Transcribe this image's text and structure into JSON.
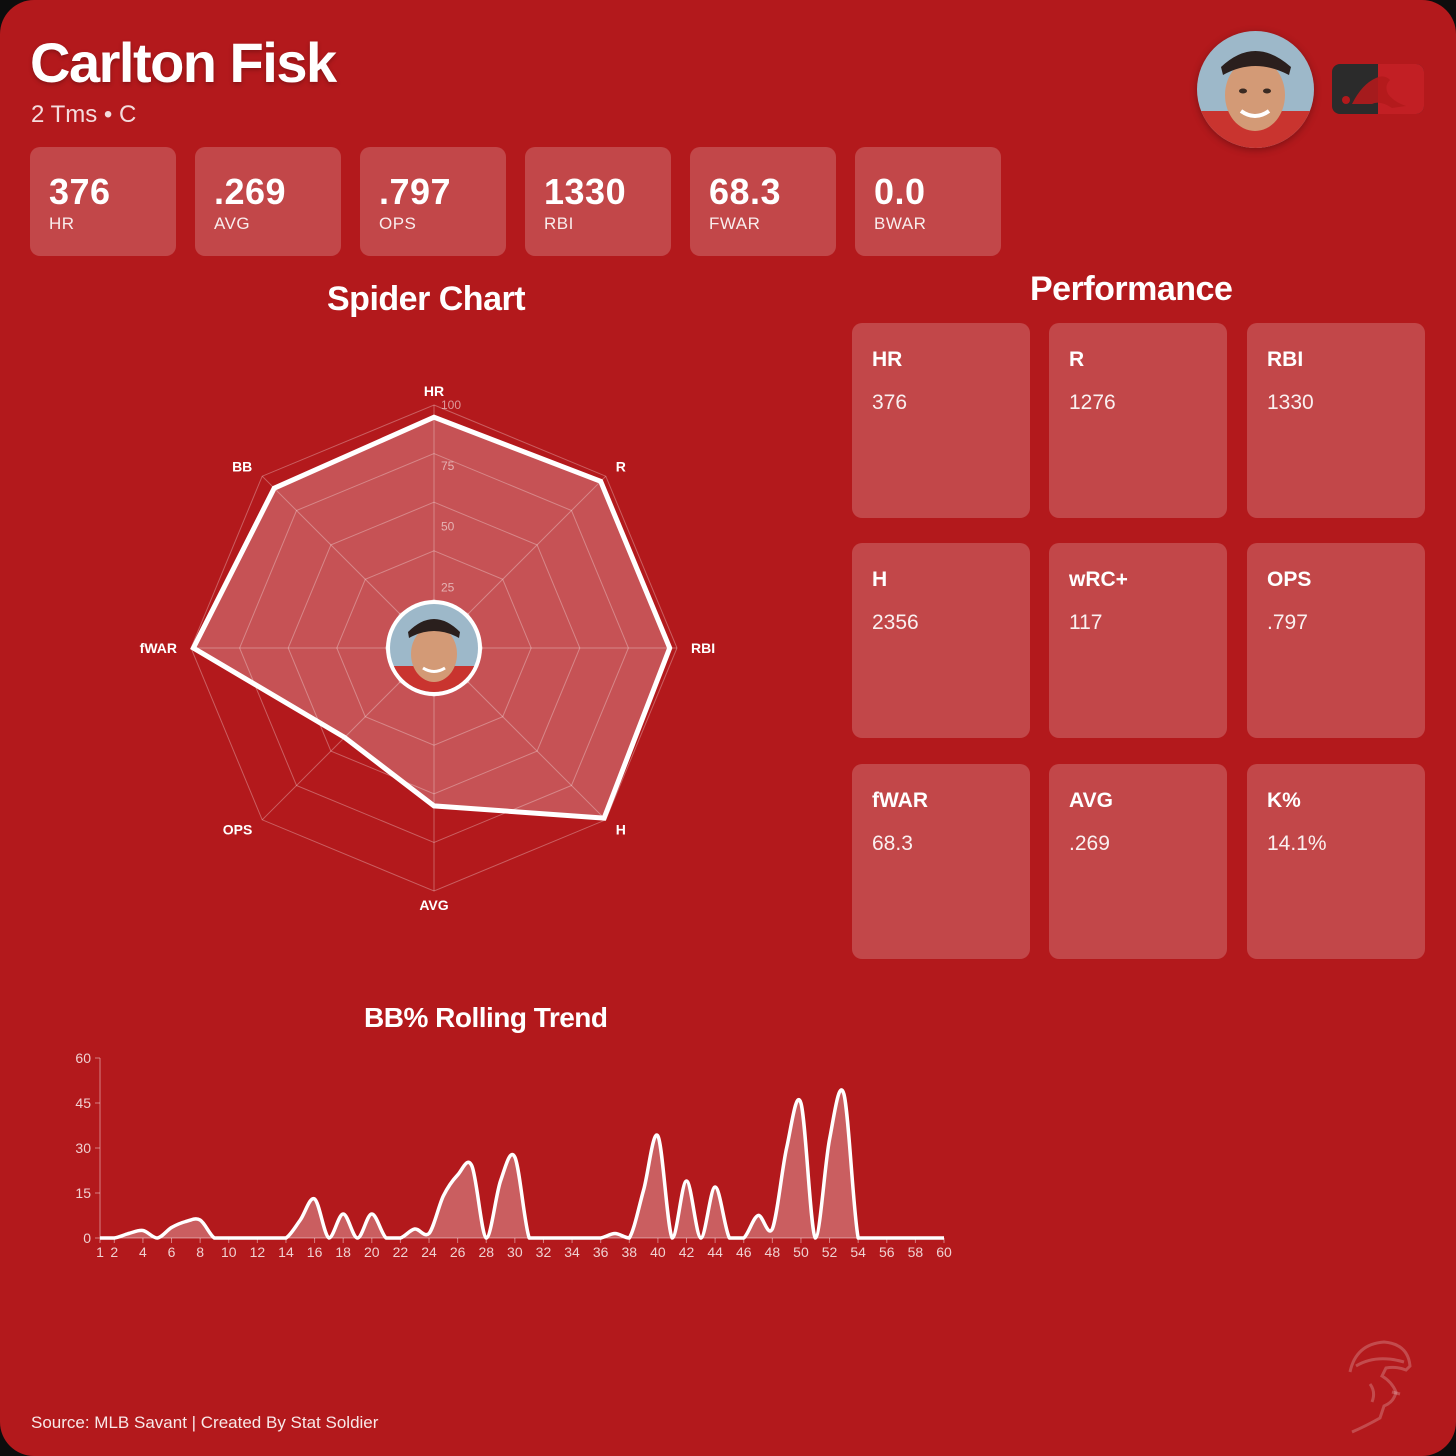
{
  "header": {
    "player_name": "Carlton Fisk",
    "subtitle": "2 Tms • C"
  },
  "summary_stats": [
    {
      "value": "376",
      "label": "HR"
    },
    {
      "value": ".269",
      "label": "AVG"
    },
    {
      "value": ".797",
      "label": "OPS"
    },
    {
      "value": "1330",
      "label": "RBI"
    },
    {
      "value": "68.3",
      "label": "FWAR"
    },
    {
      "value": "0.0",
      "label": "BWAR"
    }
  ],
  "spider_section": {
    "title": "Spider Chart"
  },
  "performance": {
    "title": "Performance",
    "items": [
      {
        "label": "HR",
        "value": "376"
      },
      {
        "label": "R",
        "value": "1276"
      },
      {
        "label": "RBI",
        "value": "1330"
      },
      {
        "label": "H",
        "value": "2356"
      },
      {
        "label": "wRC+",
        "value": "117"
      },
      {
        "label": "OPS",
        "value": ".797"
      },
      {
        "label": "fWAR",
        "value": "68.3"
      },
      {
        "label": "AVG",
        "value": ".269"
      },
      {
        "label": "K%",
        "value": "14.1%"
      }
    ]
  },
  "trend_section": {
    "title": "BB% Rolling Trend"
  },
  "footer": {
    "source": "Source: MLB Savant | Created By Stat Soldier"
  },
  "colors": {
    "background": "#b3191c",
    "panel": "rgba(255,255,255,0.2)",
    "line": "#ffffff"
  },
  "icons": {
    "league_logo": "mlb-logo-icon",
    "brand_logo": "stat-soldier-logo-icon",
    "avatar": "player-avatar"
  },
  "chart_data": [
    {
      "type": "radar",
      "axes": [
        "HR",
        "R",
        "RBI",
        "H",
        "AVG",
        "OPS",
        "fWAR",
        "BB"
      ],
      "values": [
        95,
        97,
        97,
        99,
        65,
        52,
        99,
        93
      ],
      "range": [
        0,
        100
      ],
      "ticks": [
        25,
        50,
        75,
        100
      ]
    },
    {
      "type": "area",
      "x": [
        1,
        2,
        3,
        4,
        5,
        6,
        7,
        8,
        9,
        10,
        11,
        12,
        13,
        14,
        15,
        16,
        17,
        18,
        19,
        20,
        21,
        22,
        23,
        24,
        25,
        26,
        27,
        28,
        29,
        30,
        31,
        32,
        33,
        34,
        35,
        36,
        37,
        38,
        39,
        40,
        41,
        42,
        43,
        44,
        45,
        46,
        47,
        48,
        49,
        50,
        51,
        52,
        53,
        54,
        55,
        56,
        57,
        58,
        59,
        60
      ],
      "values": [
        0,
        0,
        1.5,
        2.5,
        0,
        3.5,
        5.5,
        6,
        0,
        0,
        0,
        0,
        0,
        0,
        6,
        13,
        0,
        8,
        0,
        8,
        0,
        0,
        3,
        1.5,
        14,
        21,
        24,
        0,
        19,
        27,
        0,
        0,
        0,
        0,
        0,
        0,
        1.5,
        0,
        16,
        34,
        0,
        19,
        0,
        17,
        0,
        0,
        7.5,
        3,
        30,
        45,
        0,
        33,
        48,
        0,
        0,
        0,
        0,
        0,
        0,
        0
      ],
      "ylim": [
        0,
        60
      ],
      "yticks": [
        0,
        15,
        30,
        45,
        60
      ],
      "xticks": [
        1,
        2,
        4,
        6,
        8,
        10,
        12,
        14,
        16,
        18,
        20,
        22,
        24,
        26,
        28,
        30,
        32,
        34,
        36,
        38,
        40,
        42,
        44,
        46,
        48,
        50,
        52,
        54,
        56,
        58,
        60
      ]
    }
  ]
}
